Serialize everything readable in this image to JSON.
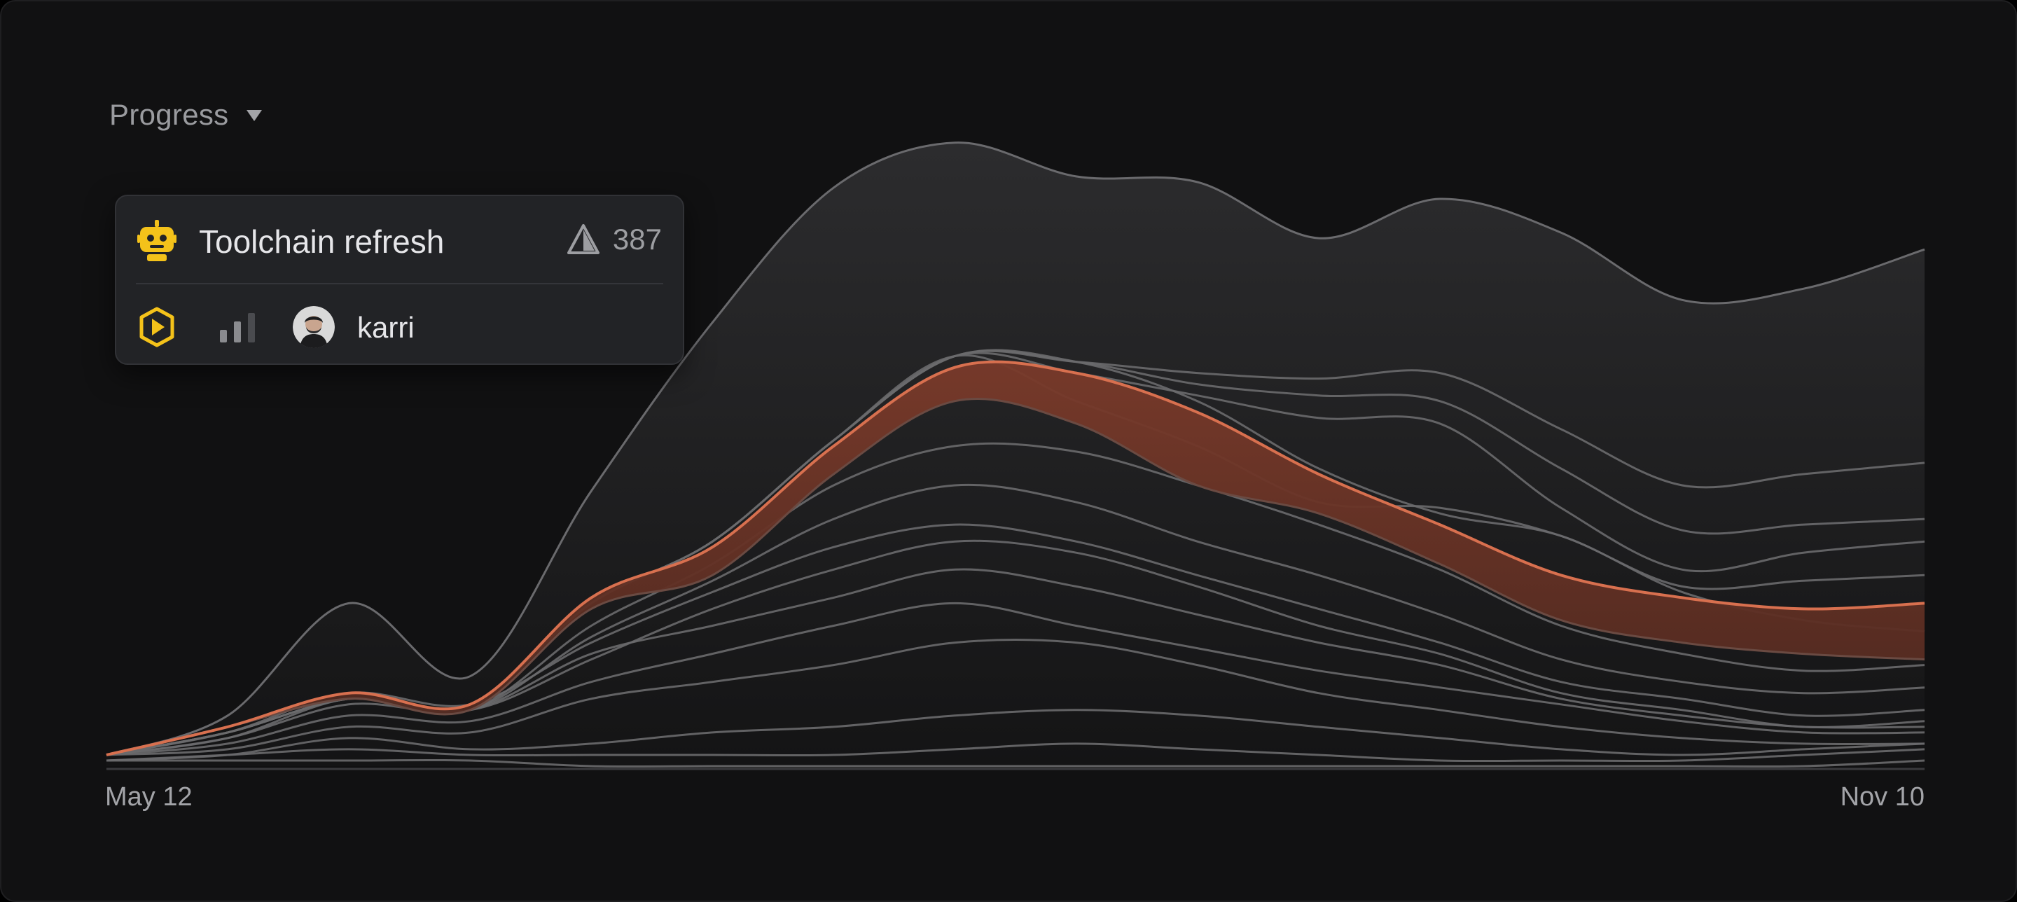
{
  "metric_selector": {
    "label": "Progress",
    "caret": "caret-down-icon"
  },
  "tooltip": {
    "project": "Toolchain refresh",
    "project_icon": "robot-icon",
    "issue_count": "387",
    "issue_icon": "warning-triangle-icon",
    "status_icon": "in-progress-hexagon-icon",
    "priority_icon": "priority-bars-icon",
    "assignee": "karri"
  },
  "colors": {
    "background": "#111112",
    "line": "#6a6a6d",
    "highlight": "#d8704f",
    "accent_icon": "#f4c21a"
  },
  "chart_data": {
    "type": "area",
    "title": "",
    "xlabel": "",
    "ylabel": "",
    "x_range": [
      "May 12",
      "Nov 10"
    ],
    "x_tick_labels": [
      "May 12",
      "Nov 10"
    ],
    "x_days": [
      0,
      12,
      24,
      36,
      48,
      60,
      72,
      84,
      96,
      108,
      120,
      132,
      144,
      156,
      168,
      180
    ],
    "ylim": [
      0,
      100
    ],
    "grid": false,
    "legend": "none",
    "highlighted_band": {
      "name": "Toolchain refresh",
      "upper": [
        2,
        7,
        13,
        11,
        30,
        39,
        57,
        71,
        70,
        63,
        52,
        43,
        34,
        30,
        28,
        29
      ],
      "lower": [
        2,
        7,
        12,
        10,
        28,
        34,
        52,
        65,
        61,
        50,
        45,
        36,
        26,
        22,
        20,
        19
      ]
    },
    "series": [
      {
        "values": [
          2,
          5,
          12,
          10,
          19,
          28,
          35,
          40,
          38,
          32,
          25,
          20,
          13,
          10,
          7,
          8
        ]
      },
      {
        "values": [
          2,
          6,
          13,
          11,
          22,
          31,
          39,
          43,
          40,
          34,
          28,
          22,
          15,
          12,
          9,
          10
        ]
      },
      {
        "values": [
          2,
          7,
          12,
          10,
          23,
          33,
          44,
          50,
          47,
          40,
          34,
          27,
          19,
          15,
          13,
          14
        ]
      },
      {
        "values": [
          2,
          7,
          12,
          10,
          25,
          36,
          50,
          57,
          56,
          50,
          43,
          35,
          25,
          20,
          17,
          18
        ]
      },
      {
        "values": [
          2,
          5,
          11,
          10,
          20,
          25,
          30,
          35,
          32,
          27,
          22,
          18,
          12,
          9,
          7,
          7
        ]
      },
      {
        "values": [
          2,
          4,
          9,
          8,
          15,
          20,
          25,
          29,
          25,
          21,
          17,
          14,
          11,
          8,
          6,
          6
        ]
      },
      {
        "values": [
          2,
          3,
          7,
          6,
          12,
          15,
          18,
          22,
          22,
          18,
          13,
          10,
          7,
          5,
          4,
          4
        ]
      },
      {
        "values": [
          1,
          2,
          5,
          3,
          4,
          6,
          7,
          9,
          10,
          9,
          7,
          5,
          3,
          2,
          3,
          4
        ]
      },
      {
        "values": [
          1,
          2,
          3,
          2,
          2,
          2,
          2,
          3,
          4,
          3,
          2,
          1,
          1,
          1,
          2,
          3
        ]
      },
      {
        "values": [
          1,
          1,
          1,
          1,
          0,
          0,
          0,
          0,
          0,
          0,
          0,
          0,
          0,
          0,
          0,
          1
        ]
      },
      {
        "values": [
          2,
          6,
          12,
          11,
          29,
          40,
          58,
          73,
          72,
          70,
          69,
          70,
          60,
          50,
          52,
          54
        ]
      },
      {
        "values": [
          2,
          6,
          12,
          11,
          29,
          40,
          58,
          73,
          72,
          68,
          66,
          65,
          53,
          42,
          43,
          44
        ]
      },
      {
        "values": [
          2,
          6,
          12,
          11,
          29,
          40,
          58,
          73,
          70,
          66,
          62,
          61,
          46,
          35,
          38,
          40
        ]
      },
      {
        "values": [
          2,
          6,
          12,
          11,
          29,
          40,
          58,
          73,
          65,
          57,
          47,
          46,
          41,
          32,
          33,
          34
        ]
      },
      {
        "values": [
          2,
          6,
          12,
          11,
          29,
          40,
          58,
          73,
          72,
          65,
          53,
          45,
          41,
          31,
          26,
          24
        ]
      }
    ],
    "envelope": [
      2,
      9,
      29,
      16,
      49,
      79,
      103,
      111,
      105,
      104,
      94,
      101,
      95,
      83,
      85,
      92
    ]
  }
}
